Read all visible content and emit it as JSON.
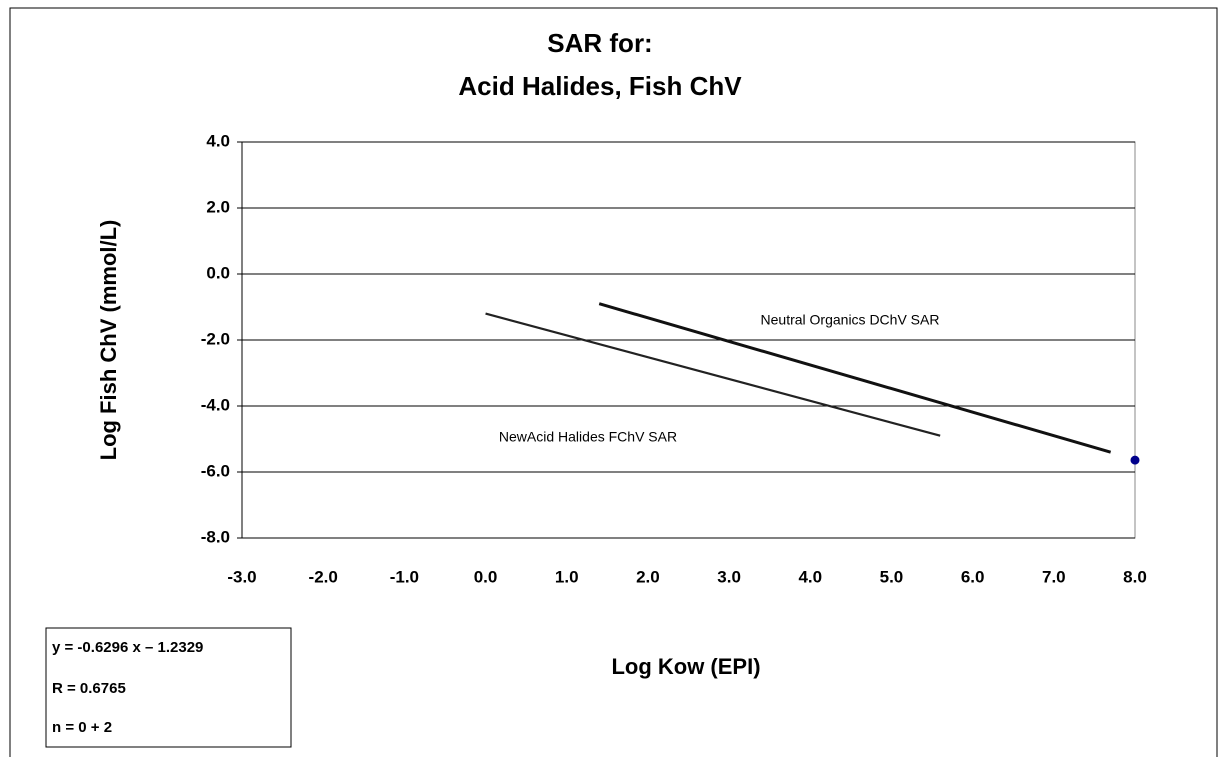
{
  "chart_data": {
    "type": "line",
    "title": "SAR for:",
    "subtitle": "Acid Halides, Fish ChV",
    "x_label": "Log Kow (EPI)",
    "y_label": "Log Fish ChV (mmol/L)",
    "xlim": [
      -3,
      8
    ],
    "ylim": [
      -8,
      4
    ],
    "xticks": [
      {
        "value": -3,
        "label": "-3.0"
      },
      {
        "value": -2,
        "label": "-2.0"
      },
      {
        "value": -1,
        "label": "-1.0"
      },
      {
        "value": 0,
        "label": "0.0"
      },
      {
        "value": 1,
        "label": "1.0"
      },
      {
        "value": 2,
        "label": "2.0"
      },
      {
        "value": 3,
        "label": "3.0"
      },
      {
        "value": 4,
        "label": "4.0"
      },
      {
        "value": 5,
        "label": "5.0"
      },
      {
        "value": 6,
        "label": "6.0"
      },
      {
        "value": 7,
        "label": "7.0"
      },
      {
        "value": 8,
        "label": "8.0"
      }
    ],
    "yticks": [
      {
        "value": 4,
        "label": "4.0"
      },
      {
        "value": 2,
        "label": "2.0"
      },
      {
        "value": 0,
        "label": "0.0"
      },
      {
        "value": -2,
        "label": "-2.0"
      },
      {
        "value": -4,
        "label": "-4.0"
      },
      {
        "value": -6,
        "label": "-6.0"
      },
      {
        "value": -8,
        "label": "-8.0"
      }
    ],
    "grid": true,
    "series": [
      {
        "name": "NewAcid Halides FChV SAR",
        "color": "#222222",
        "x": [
          0.0,
          5.6
        ],
        "values": [
          -1.2,
          -4.9
        ]
      },
      {
        "name": "Neutral Organics DChV SAR",
        "color": "#111111",
        "x": [
          1.4,
          7.7
        ],
        "values": [
          -0.9,
          -5.4
        ]
      }
    ],
    "points": {
      "color": "#00008b",
      "x": [
        8.0
      ],
      "values": [
        -5.64
      ]
    },
    "annotations": [
      "y = -0.6296 x – 1.2329",
      "R = 0.6765",
      "n = 0 + 2"
    ]
  }
}
